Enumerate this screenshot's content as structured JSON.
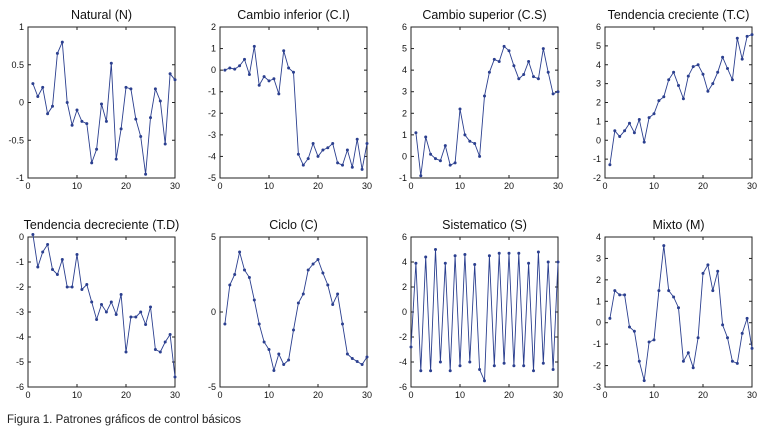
{
  "caption": "Figura 1. Patrones gráficos de control básicos",
  "colors": {
    "line": "#2b3f8f",
    "axis": "#222222",
    "text": "#111111"
  },
  "chart_data": [
    {
      "type": "line",
      "title": "Natural (N)",
      "xlim": [
        0,
        30
      ],
      "ylim": [
        -1,
        1
      ],
      "xticks": [
        "0",
        "10",
        "20",
        "30"
      ],
      "yticks": [
        "1",
        "0.5",
        "0",
        "-0.5",
        "-1"
      ],
      "x": [
        1,
        2,
        3,
        4,
        5,
        6,
        7,
        8,
        9,
        10,
        11,
        12,
        13,
        14,
        15,
        16,
        17,
        18,
        19,
        20,
        21,
        22,
        23,
        24,
        25,
        26,
        27,
        28,
        29,
        30
      ],
      "values": [
        0.25,
        0.08,
        0.2,
        -0.15,
        -0.05,
        0.65,
        0.8,
        0.0,
        -0.3,
        -0.1,
        -0.25,
        -0.28,
        -0.8,
        -0.62,
        -0.02,
        -0.25,
        0.52,
        -0.75,
        -0.35,
        0.2,
        0.18,
        -0.22,
        -0.45,
        -0.95,
        -0.2,
        0.18,
        0.02,
        -0.55,
        0.38,
        0.3
      ]
    },
    {
      "type": "line",
      "title": "Cambio inferior (C.I)",
      "xlim": [
        0,
        30
      ],
      "ylim": [
        -5,
        2
      ],
      "xticks": [
        "0",
        "10",
        "20",
        "30"
      ],
      "yticks": [
        "2",
        "1",
        "0",
        "-1",
        "-2",
        "-3",
        "-4",
        "-5"
      ],
      "x": [
        1,
        2,
        3,
        4,
        5,
        6,
        7,
        8,
        9,
        10,
        11,
        12,
        13,
        14,
        15,
        16,
        17,
        18,
        19,
        20,
        21,
        22,
        23,
        24,
        25,
        26,
        27,
        28,
        29,
        30
      ],
      "values": [
        0.0,
        0.1,
        0.05,
        0.2,
        0.5,
        -0.2,
        1.1,
        -0.7,
        -0.3,
        -0.5,
        -0.4,
        -1.1,
        0.9,
        0.1,
        -0.1,
        -3.9,
        -4.4,
        -4.1,
        -3.4,
        -4.0,
        -3.7,
        -3.6,
        -3.4,
        -4.3,
        -4.4,
        -3.7,
        -4.5,
        -3.2,
        -4.6,
        -3.4
      ]
    },
    {
      "type": "line",
      "title": "Cambio superior (C.S)",
      "xlim": [
        0,
        30
      ],
      "ylim": [
        -1,
        6
      ],
      "xticks": [
        "0",
        "10",
        "20",
        "30"
      ],
      "yticks": [
        "6",
        "5",
        "4",
        "3",
        "2",
        "1",
        "0",
        "-1"
      ],
      "x": [
        1,
        2,
        3,
        4,
        5,
        6,
        7,
        8,
        9,
        10,
        11,
        12,
        13,
        14,
        15,
        16,
        17,
        18,
        19,
        20,
        21,
        22,
        23,
        24,
        25,
        26,
        27,
        28,
        29,
        30
      ],
      "values": [
        1.1,
        -0.9,
        0.9,
        0.1,
        -0.1,
        -0.2,
        0.5,
        -0.4,
        -0.3,
        2.2,
        1.0,
        0.7,
        0.6,
        0.0,
        2.8,
        3.9,
        4.5,
        4.4,
        5.1,
        4.9,
        4.2,
        3.6,
        3.8,
        4.4,
        3.7,
        3.6,
        5.0,
        3.9,
        2.9,
        3.0
      ]
    },
    {
      "type": "line",
      "title": "Tendencia creciente (T.C)",
      "xlim": [
        0,
        30
      ],
      "ylim": [
        -2,
        6
      ],
      "xticks": [
        "0",
        "10",
        "20",
        "30"
      ],
      "yticks": [
        "6",
        "5",
        "4",
        "3",
        "2",
        "1",
        "0",
        "-1",
        "-2"
      ],
      "x": [
        1,
        2,
        3,
        4,
        5,
        6,
        7,
        8,
        9,
        10,
        11,
        12,
        13,
        14,
        15,
        16,
        17,
        18,
        19,
        20,
        21,
        22,
        23,
        24,
        25,
        26,
        27,
        28,
        29,
        30
      ],
      "values": [
        -1.3,
        0.5,
        0.2,
        0.5,
        0.9,
        0.4,
        1.1,
        -0.1,
        1.2,
        1.4,
        2.1,
        2.3,
        3.2,
        3.6,
        2.9,
        2.2,
        3.4,
        3.9,
        4.0,
        3.5,
        2.6,
        3.0,
        3.6,
        4.4,
        3.8,
        3.2,
        5.4,
        4.3,
        5.5,
        5.6
      ]
    },
    {
      "type": "line",
      "title": "Tendencia decreciente (T.D)",
      "xlim": [
        0,
        30
      ],
      "ylim": [
        -6,
        0
      ],
      "xticks": [
        "0",
        "10",
        "20",
        "30"
      ],
      "yticks": [
        "0",
        "-1",
        "-2",
        "-3",
        "-4",
        "-5",
        "-6"
      ],
      "x": [
        1,
        2,
        3,
        4,
        5,
        6,
        7,
        8,
        9,
        10,
        11,
        12,
        13,
        14,
        15,
        16,
        17,
        18,
        19,
        20,
        21,
        22,
        23,
        24,
        25,
        26,
        27,
        28,
        29,
        30
      ],
      "values": [
        0.1,
        -1.2,
        -0.6,
        -0.3,
        -1.3,
        -1.5,
        -0.9,
        -2.0,
        -2.0,
        -0.7,
        -2.1,
        -1.9,
        -2.6,
        -3.3,
        -2.7,
        -3.0,
        -2.6,
        -3.1,
        -2.3,
        -4.6,
        -3.2,
        -3.2,
        -3.0,
        -3.5,
        -2.8,
        -4.5,
        -4.6,
        -4.2,
        -3.9,
        -5.6
      ]
    },
    {
      "type": "line",
      "title": "Ciclo (C)",
      "xlim": [
        0,
        30
      ],
      "ylim": [
        -5,
        5
      ],
      "xticks": [
        "0",
        "10",
        "20",
        "30"
      ],
      "yticks": [
        "5",
        "0",
        "-5"
      ],
      "x": [
        1,
        2,
        3,
        4,
        5,
        6,
        7,
        8,
        9,
        10,
        11,
        12,
        13,
        14,
        15,
        16,
        17,
        18,
        19,
        20,
        21,
        22,
        23,
        24,
        25,
        26,
        27,
        28,
        29,
        30
      ],
      "values": [
        -0.8,
        1.8,
        2.5,
        4.0,
        2.8,
        2.3,
        0.8,
        -0.8,
        -2.0,
        -2.5,
        -3.9,
        -2.8,
        -3.5,
        -3.2,
        -1.2,
        0.6,
        1.2,
        2.8,
        3.2,
        3.5,
        2.6,
        1.8,
        0.5,
        1.2,
        -0.8,
        -2.8,
        -3.1,
        -3.3,
        -3.5,
        -3.0
      ]
    },
    {
      "type": "line",
      "title": "Sistematico (S)",
      "xlim": [
        0,
        30
      ],
      "ylim": [
        -6,
        6
      ],
      "xticks": [
        "0",
        "10",
        "20",
        "30"
      ],
      "yticks": [
        "6",
        "4",
        "2",
        "0",
        "-2",
        "-4",
        "-6"
      ],
      "x": [
        0,
        1,
        2,
        3,
        4,
        5,
        6,
        7,
        8,
        9,
        10,
        11,
        12,
        13,
        14,
        15,
        16,
        17,
        18,
        19,
        20,
        21,
        22,
        23,
        24,
        25,
        26,
        27,
        28,
        29,
        30
      ],
      "values": [
        -2.8,
        3.9,
        -4.7,
        4.4,
        -4.7,
        5.0,
        -4.0,
        3.9,
        -4.7,
        4.5,
        -4.3,
        4.6,
        -4.0,
        3.8,
        -4.6,
        -5.5,
        4.5,
        -4.3,
        4.7,
        -4.1,
        4.7,
        -4.3,
        4.7,
        -4.3,
        3.9,
        -4.7,
        4.8,
        -4.1,
        4.0,
        -4.6,
        4.0
      ]
    },
    {
      "type": "line",
      "title": "Mixto (M)",
      "xlim": [
        0,
        30
      ],
      "ylim": [
        -3,
        4
      ],
      "xticks": [
        "0",
        "10",
        "20",
        "30"
      ],
      "yticks": [
        "4",
        "3",
        "2",
        "1",
        "0",
        "-1",
        "-2",
        "-3"
      ],
      "x": [
        1,
        2,
        3,
        4,
        5,
        6,
        7,
        8,
        9,
        10,
        11,
        12,
        13,
        14,
        15,
        16,
        17,
        18,
        19,
        20,
        21,
        22,
        23,
        24,
        25,
        26,
        27,
        28,
        29,
        30
      ],
      "values": [
        0.2,
        1.5,
        1.3,
        1.3,
        -0.2,
        -0.4,
        -1.8,
        -2.7,
        -0.9,
        -0.8,
        1.5,
        3.6,
        1.5,
        1.2,
        0.7,
        -1.8,
        -1.4,
        -2.1,
        -0.7,
        2.3,
        2.7,
        1.5,
        2.4,
        -0.1,
        -0.7,
        -1.8,
        -1.9,
        -0.5,
        0.2,
        -1.2
      ]
    }
  ]
}
